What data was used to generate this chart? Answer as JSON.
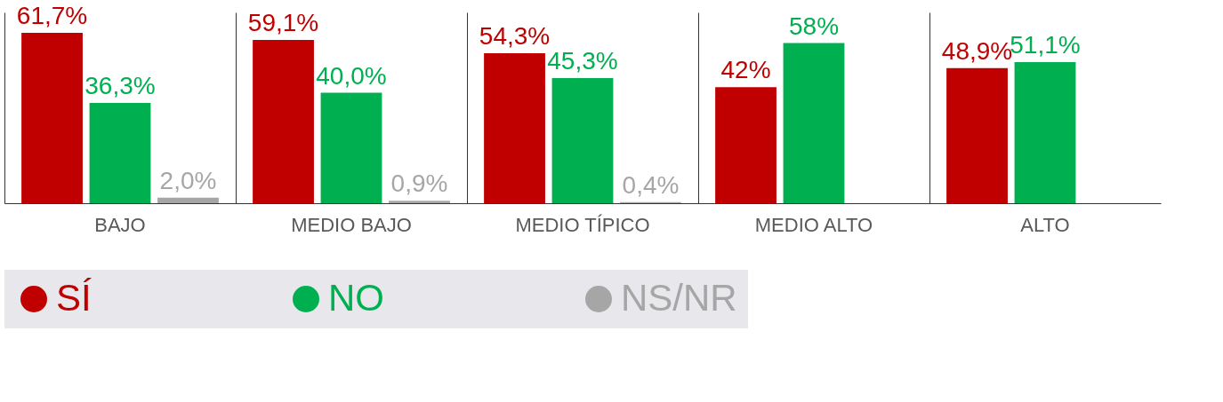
{
  "chart_data": {
    "type": "bar",
    "categories": [
      "BAJO",
      "MEDIO BAJO",
      "MEDIO TÍPICO",
      "MEDIO ALTO",
      "ALTO"
    ],
    "series": [
      {
        "name": "SÍ",
        "color": "#c00000",
        "values": [
          61.7,
          59.1,
          54.3,
          42,
          48.9
        ],
        "value_labels": [
          "61,7%",
          "59,1%",
          "54,3%",
          "42%",
          "48,9%"
        ]
      },
      {
        "name": "NO",
        "color": "#00b050",
        "values": [
          36.3,
          40.0,
          45.3,
          58,
          51.1
        ],
        "value_labels": [
          "36,3%",
          "40,0%",
          "45,3%",
          "58%",
          "51,1%"
        ]
      },
      {
        "name": "NS/NR",
        "color": "#a6a6a6",
        "values": [
          2.0,
          0.9,
          0.4,
          null,
          null
        ],
        "value_labels": [
          "2,0%",
          "0,9%",
          "0,4%",
          null,
          null
        ]
      }
    ],
    "legend": "bottom",
    "grid": "x"
  }
}
